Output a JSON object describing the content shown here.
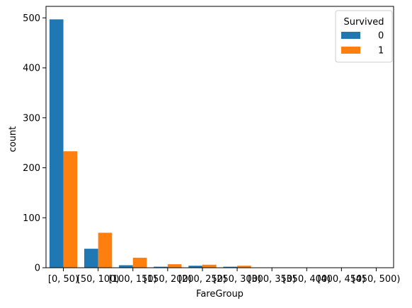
{
  "chart_data": {
    "type": "bar",
    "xlabel": "FareGroup",
    "ylabel": "count",
    "categories": [
      "[0, 50)",
      "[50, 100)",
      "[100, 150)",
      "[150, 200)",
      "[200, 250)",
      "[250, 300)",
      "[300, 350)",
      "[350, 400)",
      "[400, 450)",
      "[450, 500)"
    ],
    "series": [
      {
        "name": "0",
        "color": "#1f77b4",
        "values": [
          497,
          38,
          5,
          2,
          4,
          2,
          0,
          0,
          0,
          0
        ]
      },
      {
        "name": "1",
        "color": "#ff7f0e",
        "values": [
          233,
          70,
          20,
          7,
          6,
          4,
          0,
          0,
          0,
          0
        ]
      }
    ],
    "ylim": [
      0,
      523
    ],
    "yticks": [
      0,
      100,
      200,
      300,
      400,
      500
    ],
    "legend": {
      "title": "Survived",
      "placement": "top-right"
    },
    "grid": false
  }
}
